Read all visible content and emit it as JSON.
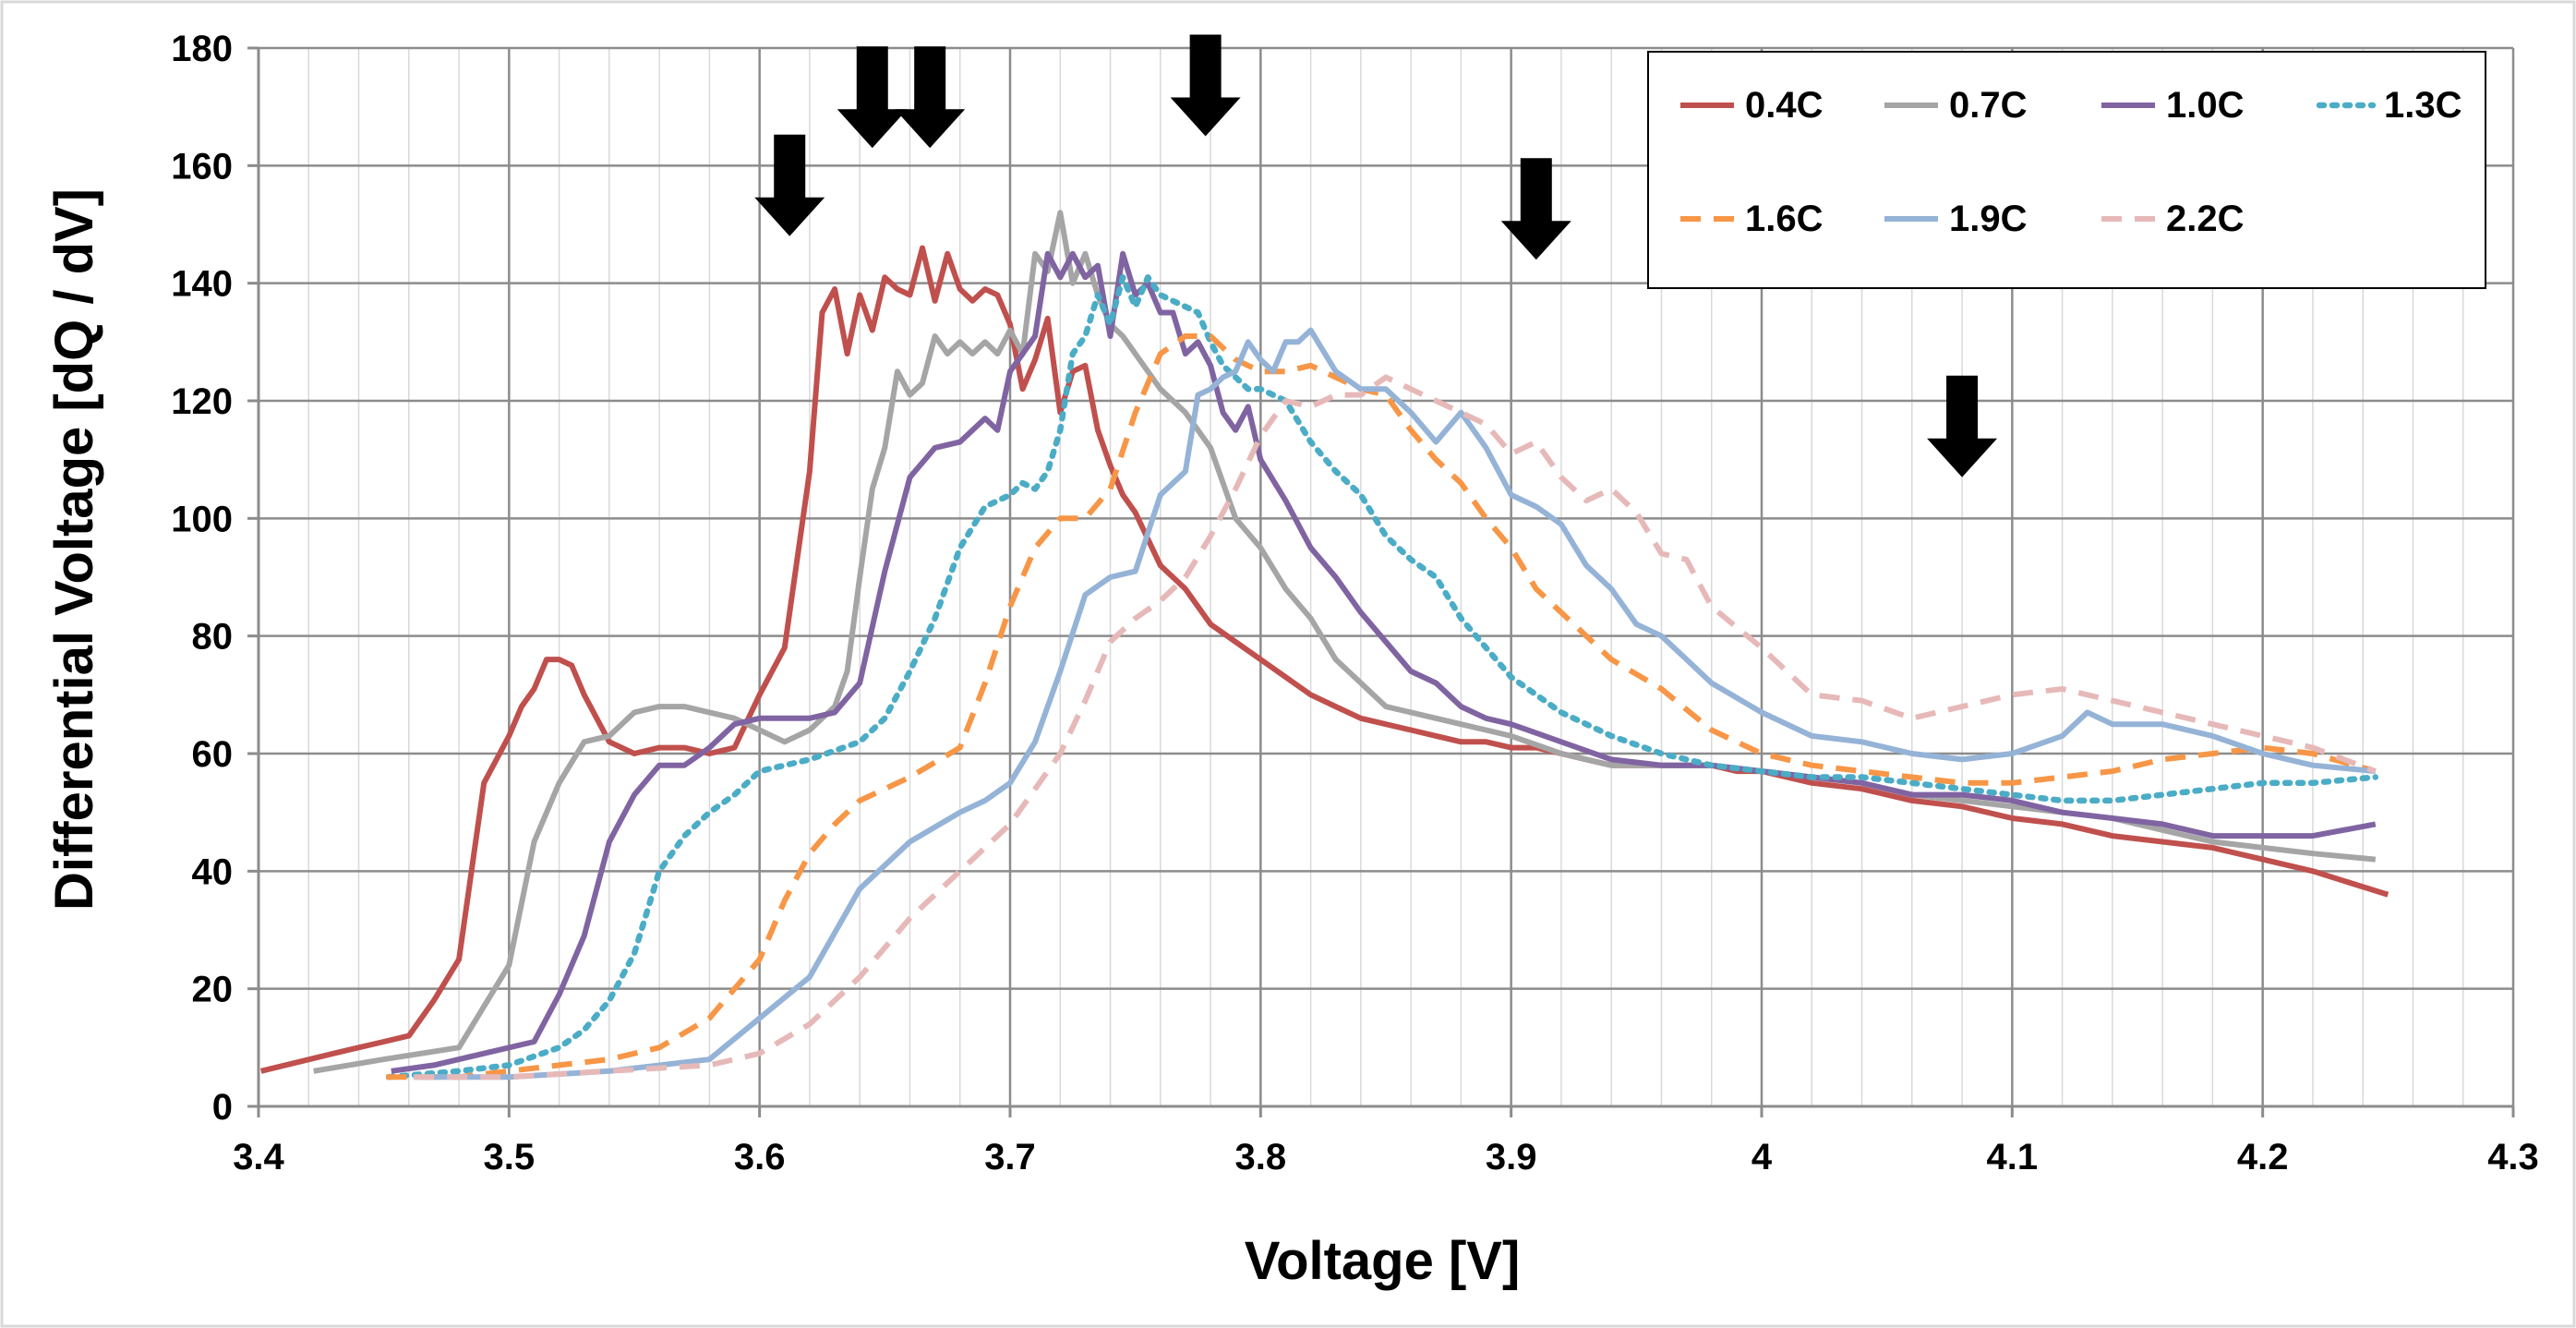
{
  "chart_data": {
    "type": "line",
    "title": "",
    "xlabel": "Voltage [V]",
    "ylabel": "Differential Voltage [dQ / dV]",
    "xlim": [
      3.4,
      4.3
    ],
    "ylim": [
      0,
      180
    ],
    "x_ticks": [
      3.4,
      3.5,
      3.6,
      3.7,
      3.8,
      3.9,
      4.0,
      4.1,
      4.2,
      4.3
    ],
    "x_tick_labels": [
      "3.4",
      "3.5",
      "3.6",
      "3.7",
      "3.8",
      "3.9",
      "4",
      "4.1",
      "4.2",
      "4.3"
    ],
    "y_ticks": [
      0,
      20,
      40,
      60,
      80,
      100,
      120,
      140,
      160,
      180
    ],
    "y_tick_labels": [
      "0",
      "20",
      "40",
      "60",
      "80",
      "100",
      "120",
      "140",
      "160",
      "180"
    ],
    "grid": true,
    "legend_position": "top-right",
    "series": [
      {
        "name": "0.4C",
        "color": "#C0504D",
        "dash": "solid",
        "x": [
          3.401,
          3.43,
          3.44,
          3.45,
          3.46,
          3.47,
          3.48,
          3.49,
          3.5,
          3.505,
          3.51,
          3.515,
          3.52,
          3.525,
          3.53,
          3.54,
          3.55,
          3.56,
          3.57,
          3.58,
          3.59,
          3.6,
          3.61,
          3.62,
          3.625,
          3.63,
          3.635,
          3.64,
          3.645,
          3.65,
          3.655,
          3.66,
          3.665,
          3.67,
          3.675,
          3.68,
          3.685,
          3.69,
          3.695,
          3.7,
          3.705,
          3.71,
          3.715,
          3.72,
          3.725,
          3.73,
          3.735,
          3.74,
          3.745,
          3.75,
          3.76,
          3.77,
          3.78,
          3.79,
          3.8,
          3.81,
          3.82,
          3.83,
          3.84,
          3.85,
          3.86,
          3.87,
          3.88,
          3.89,
          3.9,
          3.91,
          3.92,
          3.93,
          3.94,
          3.95,
          3.96,
          3.97,
          3.98,
          3.99,
          4.0,
          4.02,
          4.04,
          4.06,
          4.08,
          4.1,
          4.12,
          4.14,
          4.16,
          4.18,
          4.2,
          4.22,
          4.25
        ],
        "values": [
          6,
          9,
          10,
          11,
          12,
          18,
          25,
          55,
          63,
          68,
          71,
          76,
          76,
          75,
          70,
          62,
          60,
          61,
          61,
          60,
          61,
          70,
          78,
          108,
          135,
          139,
          128,
          138,
          132,
          141,
          139,
          138,
          146,
          137,
          145,
          139,
          137,
          139,
          138,
          133,
          122,
          127,
          134,
          118,
          125,
          126,
          115,
          109,
          104,
          101,
          92,
          88,
          82,
          79,
          76,
          73,
          70,
          68,
          66,
          65,
          64,
          63,
          62,
          62,
          61,
          61,
          60,
          59,
          58,
          58,
          58,
          58,
          58,
          57,
          57,
          55,
          54,
          52,
          51,
          49,
          48,
          46,
          45,
          44,
          42,
          40,
          36
        ]
      },
      {
        "name": "0.7C",
        "color": "#A5A5A5",
        "dash": "solid",
        "x": [
          3.422,
          3.45,
          3.48,
          3.5,
          3.51,
          3.52,
          3.53,
          3.54,
          3.55,
          3.56,
          3.57,
          3.58,
          3.59,
          3.6,
          3.61,
          3.62,
          3.63,
          3.635,
          3.64,
          3.645,
          3.65,
          3.655,
          3.66,
          3.665,
          3.67,
          3.675,
          3.68,
          3.685,
          3.69,
          3.695,
          3.7,
          3.705,
          3.71,
          3.715,
          3.72,
          3.725,
          3.73,
          3.735,
          3.74,
          3.745,
          3.75,
          3.76,
          3.77,
          3.78,
          3.79,
          3.8,
          3.81,
          3.82,
          3.83,
          3.84,
          3.85,
          3.86,
          3.87,
          3.88,
          3.89,
          3.9,
          3.92,
          3.94,
          3.96,
          3.98,
          4.0,
          4.02,
          4.04,
          4.06,
          4.08,
          4.1,
          4.12,
          4.14,
          4.16,
          4.18,
          4.2,
          4.22,
          4.245
        ],
        "values": [
          6,
          8,
          10,
          24,
          45,
          55,
          62,
          63,
          67,
          68,
          68,
          67,
          66,
          64,
          62,
          64,
          68,
          74,
          90,
          105,
          112,
          125,
          121,
          123,
          131,
          128,
          130,
          128,
          130,
          128,
          132,
          128,
          145,
          142,
          152,
          140,
          145,
          138,
          133,
          131,
          128,
          122,
          118,
          112,
          100,
          95,
          88,
          83,
          76,
          72,
          68,
          67,
          66,
          65,
          64,
          63,
          60,
          58,
          58,
          58,
          57,
          56,
          55,
          53,
          52,
          51,
          50,
          49,
          47,
          45,
          44,
          43,
          42
        ]
      },
      {
        "name": "1.0C",
        "color": "#8064A2",
        "dash": "solid",
        "x": [
          3.453,
          3.47,
          3.49,
          3.51,
          3.52,
          3.53,
          3.54,
          3.55,
          3.56,
          3.57,
          3.58,
          3.59,
          3.6,
          3.61,
          3.62,
          3.63,
          3.64,
          3.65,
          3.66,
          3.67,
          3.68,
          3.69,
          3.695,
          3.7,
          3.705,
          3.71,
          3.715,
          3.72,
          3.725,
          3.73,
          3.735,
          3.74,
          3.745,
          3.75,
          3.755,
          3.76,
          3.765,
          3.77,
          3.775,
          3.78,
          3.785,
          3.79,
          3.795,
          3.8,
          3.81,
          3.82,
          3.83,
          3.84,
          3.85,
          3.86,
          3.87,
          3.88,
          3.89,
          3.9,
          3.92,
          3.94,
          3.96,
          3.98,
          4.0,
          4.02,
          4.04,
          4.06,
          4.08,
          4.1,
          4.12,
          4.14,
          4.16,
          4.18,
          4.2,
          4.22,
          4.245
        ],
        "values": [
          6,
          7,
          9,
          11,
          19,
          29,
          45,
          53,
          58,
          58,
          61,
          65,
          66,
          66,
          66,
          67,
          72,
          91,
          107,
          112,
          113,
          117,
          115,
          125,
          128,
          131,
          145,
          141,
          145,
          141,
          143,
          131,
          145,
          138,
          140,
          135,
          135,
          128,
          130,
          126,
          118,
          115,
          119,
          110,
          103,
          95,
          90,
          84,
          79,
          74,
          72,
          68,
          66,
          65,
          62,
          59,
          58,
          58,
          57,
          56,
          55,
          53,
          53,
          52,
          50,
          49,
          48,
          46,
          46,
          46,
          48
        ]
      },
      {
        "name": "1.3C",
        "color": "#4BACC6",
        "dash": "dot",
        "x": [
          3.452,
          3.48,
          3.5,
          3.52,
          3.53,
          3.54,
          3.55,
          3.56,
          3.57,
          3.58,
          3.59,
          3.6,
          3.62,
          3.64,
          3.65,
          3.66,
          3.67,
          3.68,
          3.69,
          3.7,
          3.705,
          3.71,
          3.715,
          3.72,
          3.725,
          3.73,
          3.735,
          3.74,
          3.745,
          3.75,
          3.755,
          3.76,
          3.765,
          3.77,
          3.775,
          3.78,
          3.785,
          3.79,
          3.795,
          3.8,
          3.81,
          3.82,
          3.83,
          3.84,
          3.85,
          3.86,
          3.87,
          3.88,
          3.89,
          3.9,
          3.91,
          3.92,
          3.94,
          3.96,
          3.98,
          4.0,
          4.02,
          4.04,
          4.06,
          4.08,
          4.1,
          4.12,
          4.14,
          4.16,
          4.18,
          4.2,
          4.22,
          4.245
        ],
        "values": [
          5,
          6,
          7,
          10,
          13,
          18,
          26,
          40,
          46,
          50,
          53,
          57,
          59,
          62,
          66,
          74,
          83,
          95,
          102,
          104,
          106,
          105,
          108,
          115,
          128,
          131,
          138,
          133,
          141,
          136,
          141,
          138,
          137,
          136,
          135,
          130,
          126,
          124,
          122,
          122,
          120,
          113,
          108,
          104,
          97,
          93,
          90,
          83,
          78,
          73,
          70,
          67,
          63,
          60,
          58,
          57,
          56,
          56,
          55,
          54,
          53,
          52,
          52,
          53,
          54,
          55,
          55,
          56
        ]
      },
      {
        "name": "1.6C",
        "color": "#F79646",
        "dash": "dash",
        "x": [
          3.451,
          3.48,
          3.5,
          3.52,
          3.54,
          3.56,
          3.58,
          3.6,
          3.61,
          3.62,
          3.63,
          3.64,
          3.66,
          3.68,
          3.69,
          3.7,
          3.71,
          3.72,
          3.73,
          3.74,
          3.75,
          3.76,
          3.77,
          3.78,
          3.79,
          3.8,
          3.81,
          3.82,
          3.83,
          3.84,
          3.85,
          3.86,
          3.87,
          3.88,
          3.89,
          3.9,
          3.91,
          3.92,
          3.94,
          3.96,
          3.98,
          4.0,
          4.02,
          4.04,
          4.06,
          4.08,
          4.1,
          4.12,
          4.14,
          4.16,
          4.18,
          4.2,
          4.22,
          4.245
        ],
        "values": [
          5,
          5,
          6,
          7,
          8,
          10,
          15,
          25,
          35,
          43,
          48,
          52,
          56,
          61,
          72,
          85,
          95,
          100,
          100,
          105,
          118,
          128,
          131,
          131,
          127,
          125,
          125,
          126,
          124,
          122,
          121,
          115,
          110,
          106,
          100,
          95,
          88,
          84,
          76,
          71,
          64,
          60,
          58,
          57,
          56,
          55,
          55,
          56,
          57,
          59,
          60,
          61,
          60,
          57
        ]
      },
      {
        "name": "1.9C",
        "color": "#95B3D7",
        "dash": "solid",
        "x": [
          3.462,
          3.5,
          3.54,
          3.58,
          3.6,
          3.62,
          3.64,
          3.66,
          3.68,
          3.69,
          3.7,
          3.71,
          3.72,
          3.73,
          3.74,
          3.75,
          3.76,
          3.77,
          3.775,
          3.78,
          3.785,
          3.79,
          3.795,
          3.8,
          3.805,
          3.81,
          3.815,
          3.82,
          3.83,
          3.84,
          3.85,
          3.86,
          3.87,
          3.88,
          3.89,
          3.9,
          3.91,
          3.92,
          3.93,
          3.94,
          3.95,
          3.96,
          3.97,
          3.98,
          4.0,
          4.02,
          4.04,
          4.06,
          4.08,
          4.1,
          4.12,
          4.13,
          4.14,
          4.16,
          4.18,
          4.2,
          4.22,
          4.245
        ],
        "values": [
          5,
          5,
          6,
          8,
          15,
          22,
          37,
          45,
          50,
          52,
          55,
          62,
          74,
          87,
          90,
          91,
          104,
          108,
          121,
          122,
          124,
          125,
          130,
          127,
          125,
          130,
          130,
          132,
          125,
          122,
          122,
          118,
          113,
          118,
          112,
          104,
          102,
          99,
          92,
          88,
          82,
          80,
          76,
          72,
          67,
          63,
          62,
          60,
          59,
          60,
          63,
          67,
          65,
          65,
          63,
          60,
          58,
          57
        ]
      },
      {
        "name": "2.2C",
        "color": "#E6B9B8",
        "dash": "dash",
        "x": [
          3.462,
          3.5,
          3.54,
          3.58,
          3.6,
          3.62,
          3.64,
          3.66,
          3.68,
          3.7,
          3.72,
          3.73,
          3.74,
          3.75,
          3.76,
          3.77,
          3.78,
          3.79,
          3.8,
          3.81,
          3.82,
          3.83,
          3.84,
          3.85,
          3.86,
          3.87,
          3.88,
          3.89,
          3.9,
          3.91,
          3.92,
          3.93,
          3.94,
          3.95,
          3.96,
          3.97,
          3.98,
          4.0,
          4.02,
          4.04,
          4.06,
          4.08,
          4.1,
          4.12,
          4.14,
          4.16,
          4.18,
          4.2,
          4.22,
          4.245
        ],
        "values": [
          5,
          5,
          6,
          7,
          9,
          14,
          22,
          32,
          40,
          48,
          60,
          69,
          79,
          83,
          86,
          90,
          97,
          105,
          114,
          120,
          119,
          121,
          121,
          124,
          122,
          120,
          118,
          116,
          111,
          113,
          107,
          103,
          105,
          101,
          94,
          93,
          85,
          78,
          70,
          69,
          66,
          68,
          70,
          71,
          69,
          67,
          65,
          63,
          61,
          57
        ]
      }
    ],
    "annotations": [
      {
        "type": "down-arrow",
        "x": 3.612,
        "y": 148
      },
      {
        "type": "down-arrow",
        "x": 3.645,
        "y": 163
      },
      {
        "type": "down-arrow",
        "x": 3.668,
        "y": 163
      },
      {
        "type": "down-arrow",
        "x": 3.778,
        "y": 165
      },
      {
        "type": "down-arrow",
        "x": 3.91,
        "y": 144
      },
      {
        "type": "down-arrow",
        "x": 4.08,
        "y": 107
      }
    ]
  }
}
